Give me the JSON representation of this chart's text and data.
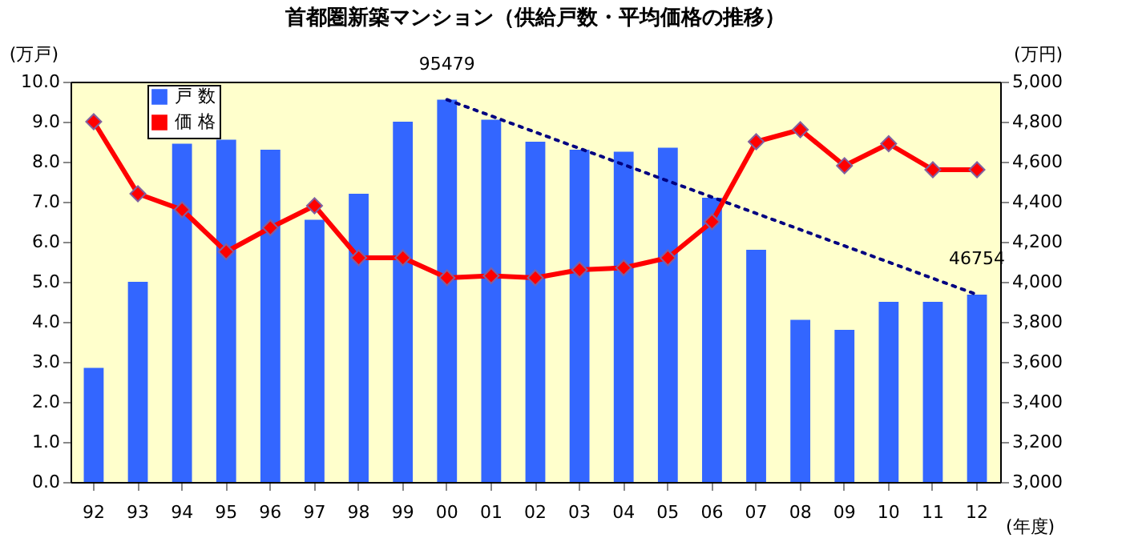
{
  "chart_data": {
    "type": "bar",
    "title": "首都圏新築マンション（供給戸数・平均価格の推移）",
    "xlabel": "(年度)",
    "ylabel": "(万戸)",
    "y2label": "(万円)",
    "categories": [
      "92",
      "93",
      "94",
      "95",
      "96",
      "97",
      "98",
      "99",
      "00",
      "01",
      "02",
      "03",
      "04",
      "05",
      "06",
      "07",
      "08",
      "09",
      "10",
      "11",
      "12"
    ],
    "series": [
      {
        "name": "戸 数",
        "color": "#3366ff",
        "values": [
          2.85,
          5.0,
          8.45,
          8.55,
          8.3,
          6.55,
          7.2,
          9.0,
          9.55,
          9.05,
          8.5,
          8.3,
          8.25,
          8.35,
          7.1,
          5.8,
          4.05,
          3.8,
          4.5,
          4.5,
          4.68
        ]
      },
      {
        "name": "価 格",
        "type": "line",
        "axis": "y2",
        "color": "#ff0000",
        "marker": "diamond",
        "values": [
          4800,
          4440,
          4360,
          4150,
          4270,
          4380,
          4120,
          4120,
          4020,
          4030,
          4020,
          4060,
          4070,
          4120,
          4300,
          4700,
          4760,
          4580,
          4690,
          4560,
          4560
        ]
      },
      {
        "type": "line",
        "color": "#000080",
        "line_style": "dotted",
        "marker": "none",
        "x": [
          "00",
          "12"
        ],
        "values": [
          9.55,
          4.68
        ]
      }
    ],
    "ylim": [
      0,
      10
    ],
    "yticks": [
      {
        "value": 0,
        "label": "0.0"
      },
      {
        "value": 1,
        "label": "1.0"
      },
      {
        "value": 2,
        "label": "2.0"
      },
      {
        "value": 3,
        "label": "3.0"
      },
      {
        "value": 4,
        "label": "4.0"
      },
      {
        "value": 5,
        "label": "5.0"
      },
      {
        "value": 6,
        "label": "6.0"
      },
      {
        "value": 7,
        "label": "7.0"
      },
      {
        "value": 8,
        "label": "8.0"
      },
      {
        "value": 9,
        "label": "9.0"
      },
      {
        "value": 10,
        "label": "10.0"
      }
    ],
    "y2lim": [
      3000,
      5000
    ],
    "y2ticks": [
      {
        "value": 3000,
        "label": "3,000"
      },
      {
        "value": 3200,
        "label": "3,200"
      },
      {
        "value": 3400,
        "label": "3,400"
      },
      {
        "value": 3600,
        "label": "3,600"
      },
      {
        "value": 3800,
        "label": "3,800"
      },
      {
        "value": 4000,
        "label": "4,000"
      },
      {
        "value": 4200,
        "label": "4,200"
      },
      {
        "value": 4400,
        "label": "4,400"
      },
      {
        "value": 4600,
        "label": "4,600"
      },
      {
        "value": 4800,
        "label": "4,800"
      },
      {
        "value": 5000,
        "label": "5,000"
      }
    ],
    "annotations": [
      {
        "text": "95479",
        "x": "00",
        "y": 9.55
      },
      {
        "text": "46754",
        "x": "12",
        "y": 4.68
      }
    ],
    "grid": false,
    "legend": "top left"
  }
}
